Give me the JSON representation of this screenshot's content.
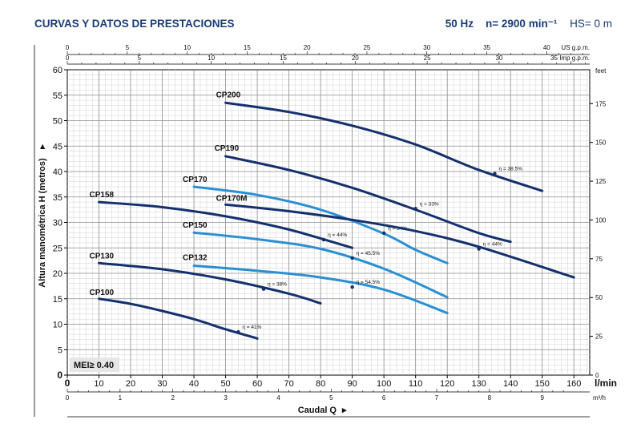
{
  "header": {
    "title": "CURVAS Y DATOS DE PRESTACIONES",
    "freq": "50 Hz",
    "speed": "n= 2900 min⁻¹",
    "hs": "HS= 0 m"
  },
  "chart_data": {
    "type": "line",
    "xlabel": "Caudal Q",
    "ylabel": "Altura manométrica H (metros)",
    "x_unit": "l/min",
    "y_right_unit": "feet",
    "xlim": [
      0,
      165
    ],
    "ylim": [
      0,
      60
    ],
    "x_ticks": [
      0,
      10,
      20,
      30,
      40,
      50,
      60,
      70,
      80,
      90,
      100,
      110,
      120,
      130,
      140,
      150,
      160
    ],
    "y_ticks": [
      0,
      5,
      10,
      15,
      20,
      25,
      30,
      35,
      40,
      45,
      50,
      55,
      60
    ],
    "y_right_ticks": [
      0,
      25,
      50,
      75,
      100,
      125,
      150,
      175
    ],
    "m3h_ticks": [
      0,
      1,
      2,
      3,
      4,
      5,
      6,
      7,
      8,
      9
    ],
    "m3h_unit": "m³/h",
    "usgpm_ticks": [
      0,
      5,
      10,
      15,
      20,
      25,
      30,
      35,
      40
    ],
    "usgpm_unit": "US g.p.m.",
    "impgpm_ticks": [
      0,
      5,
      10,
      15,
      20,
      25,
      30,
      35
    ],
    "impgpm_unit": "Imp g.p.m.",
    "mei": "MEI≥ 0.40",
    "series": [
      {
        "name": "CP200",
        "color": "#14306e",
        "x": [
          50,
          70,
          90,
          110,
          130,
          150
        ],
        "y": [
          53.5,
          51.7,
          49.0,
          45.3,
          40.3,
          36.2
        ],
        "eta": {
          "label": "η = 38.5%",
          "x": 135,
          "y": 39.6
        }
      },
      {
        "name": "CP190",
        "color": "#14306e",
        "x": [
          50,
          70,
          90,
          110,
          130,
          140
        ],
        "y": [
          43.0,
          40.3,
          36.8,
          32.5,
          27.9,
          26.2
        ],
        "eta": {
          "label": "η = 33%",
          "x": 110,
          "y": 32.7
        }
      },
      {
        "name": "CP170",
        "color": "#2a8fd4",
        "x": [
          40,
          60,
          80,
          100,
          110,
          120
        ],
        "y": [
          37.0,
          35.4,
          32.5,
          27.8,
          24.6,
          22.0
        ],
        "eta": {
          "label": "η = 34%",
          "x": 100,
          "y": 27.9
        }
      },
      {
        "name": "CP170M",
        "color": "#14306e",
        "x": [
          50,
          70,
          90,
          110,
          130,
          160
        ],
        "y": [
          33.5,
          32.2,
          30.5,
          28.3,
          25.2,
          19.2
        ],
        "eta": {
          "label": "η = 44%",
          "x": 130,
          "y": 24.8
        }
      },
      {
        "name": "CP158",
        "color": "#14306e",
        "x": [
          10,
          30,
          50,
          70,
          90
        ],
        "y": [
          34.0,
          33.0,
          31.2,
          28.6,
          25.0
        ],
        "eta": {
          "label": "η = 44%",
          "x": 81,
          "y": 26.6
        }
      },
      {
        "name": "CP150",
        "color": "#2a8fd4",
        "x": [
          40,
          60,
          80,
          100,
          120
        ],
        "y": [
          28.0,
          26.7,
          24.8,
          20.9,
          15.3
        ],
        "eta": {
          "label": "η = 45.5%",
          "x": 90,
          "y": 23.0
        }
      },
      {
        "name": "CP132",
        "color": "#2a8fd4",
        "x": [
          40,
          60,
          80,
          100,
          120
        ],
        "y": [
          21.5,
          20.5,
          19.2,
          16.8,
          12.2
        ],
        "eta": {
          "label": "η = 54.5%",
          "x": 90,
          "y": 17.3
        }
      },
      {
        "name": "CP130",
        "color": "#14306e",
        "x": [
          10,
          30,
          50,
          70,
          80
        ],
        "y": [
          22.0,
          20.8,
          18.8,
          16.0,
          14.1
        ],
        "eta": {
          "label": "η = 38%",
          "x": 62,
          "y": 16.9
        }
      },
      {
        "name": "CP100",
        "color": "#14306e",
        "x": [
          10,
          20,
          30,
          40,
          50,
          60
        ],
        "y": [
          15.0,
          14.0,
          12.6,
          11.0,
          9.0,
          7.2
        ],
        "eta": {
          "label": "η = 41%",
          "x": 54,
          "y": 8.5
        }
      }
    ]
  }
}
